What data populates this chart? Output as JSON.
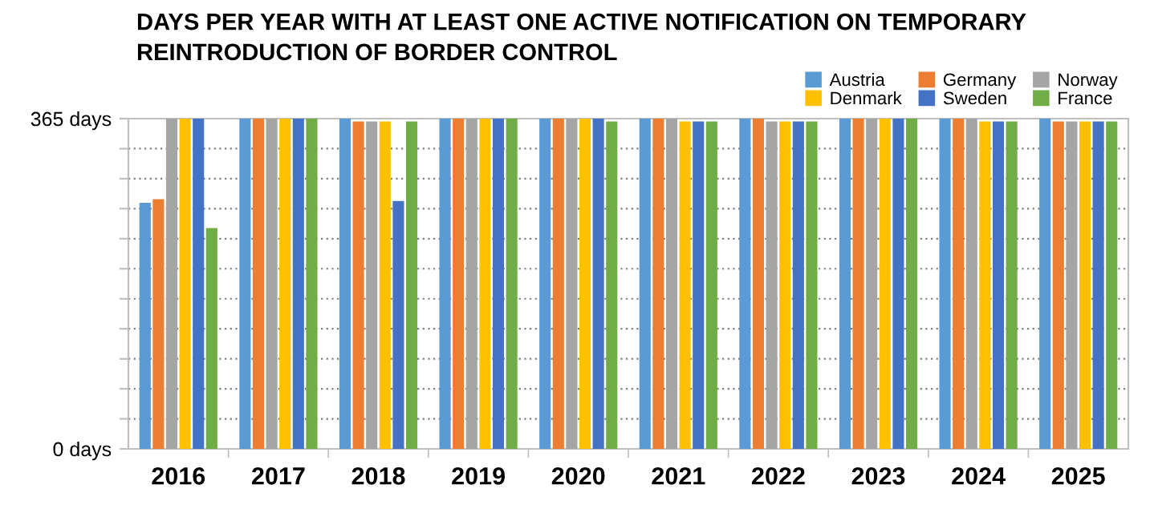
{
  "chart_data": {
    "type": "bar",
    "title": "DAYS PER YEAR WITH AT LEAST ONE ACTIVE NOTIFICATION ON TEMPORARY\nREINTRODUCTION OF BORDER CONTROL",
    "categories": [
      "2016",
      "2017",
      "2018",
      "2019",
      "2020",
      "2021",
      "2022",
      "2023",
      "2024",
      "2025"
    ],
    "series": [
      {
        "name": "Austria",
        "color": "#5b9bd5",
        "values": [
          272,
          365,
          365,
          365,
          365,
          365,
          365,
          365,
          365,
          365
        ]
      },
      {
        "name": "Germany",
        "color": "#ed7d31",
        "values": [
          276,
          365,
          362,
          365,
          365,
          365,
          365,
          365,
          365,
          362
        ]
      },
      {
        "name": "Norway",
        "color": "#a5a5a5",
        "values": [
          365,
          365,
          362,
          365,
          365,
          365,
          362,
          365,
          365,
          362
        ]
      },
      {
        "name": "Denmark",
        "color": "#ffc000",
        "values": [
          365,
          365,
          362,
          365,
          365,
          362,
          362,
          365,
          362,
          362
        ]
      },
      {
        "name": "Sweden",
        "color": "#4472c4",
        "values": [
          365,
          365,
          274,
          365,
          365,
          362,
          362,
          365,
          362,
          362
        ]
      },
      {
        "name": "France",
        "color": "#70ad47",
        "values": [
          244,
          365,
          362,
          365,
          362,
          362,
          362,
          365,
          362,
          362
        ]
      }
    ],
    "ylim": [
      0,
      365
    ],
    "yticks": [
      {
        "value": 0,
        "label": "0 days"
      },
      {
        "value": 33.2,
        "label": null
      },
      {
        "value": 66.4,
        "label": null
      },
      {
        "value": 99.5,
        "label": null
      },
      {
        "value": 132.7,
        "label": null
      },
      {
        "value": 165.9,
        "label": null
      },
      {
        "value": 199.1,
        "label": null
      },
      {
        "value": 232.3,
        "label": null
      },
      {
        "value": 265.5,
        "label": null
      },
      {
        "value": 298.6,
        "label": null
      },
      {
        "value": 331.8,
        "label": null
      },
      {
        "value": 365,
        "label": "365 days"
      }
    ],
    "grid": "y",
    "legend": "top right"
  }
}
